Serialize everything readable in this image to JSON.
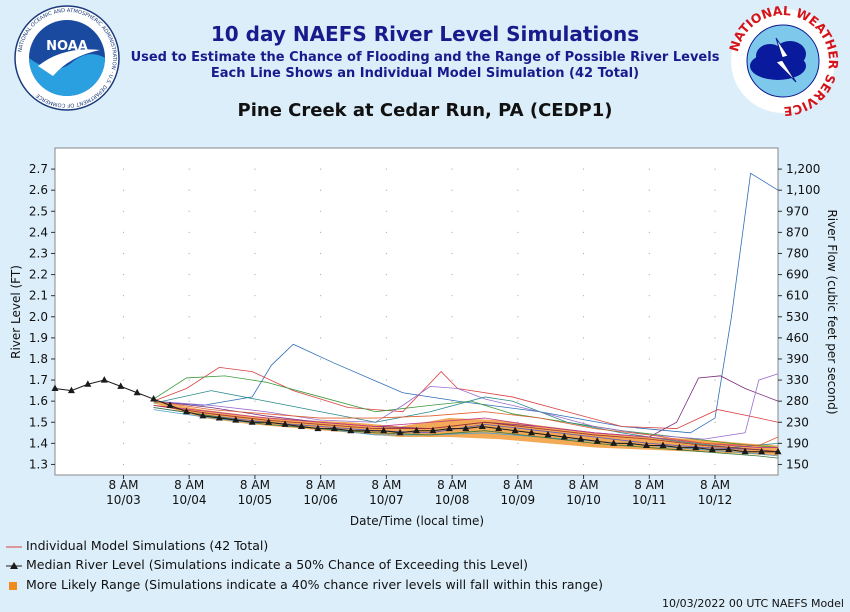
{
  "header": {
    "title": "10 day NAEFS River Level Simulations",
    "subtitle1": "Used to Estimate the Chance of Flooding and the Range of Possible River Levels",
    "subtitle2": "Each Line Shows an Individual Model Simulation (42 Total)",
    "location": "Pine Creek at Cedar Run, PA (CEDP1)"
  },
  "logos": {
    "noaa_text": "NOAA",
    "noaa_ring": "NATIONAL OCEANIC AND ATMOSPHERIC ADMINISTRATION · U.S. DEPARTMENT OF COMMERCE",
    "nws_ring": "NATIONAL WEATHER SERVICE"
  },
  "legend": {
    "individual": "Individual Model Simulations (42 Total)",
    "median": "Median River Level (Simulations indicate a 50% Chance of Exceeding this Level)",
    "range": "More Likely Range (Simulations indicate a 40% chance river levels will fall within this range)"
  },
  "footer": "10/03/2022 00 UTC NAEFS Model",
  "colors": {
    "title": "#1a1a8c",
    "background": "#dceefa",
    "median": "#1a1a1a",
    "range": "#f08c1e"
  },
  "chart_data": {
    "type": "line",
    "xlabel": "Date/Time (local time)",
    "ylabel": "River Level (FT)",
    "y2label": "River Flow (cubic feet per second)",
    "ylim": [
      1.25,
      2.8
    ],
    "yticks": [
      1.3,
      1.4,
      1.5,
      1.6,
      1.7,
      1.8,
      1.9,
      2.0,
      2.1,
      2.2,
      2.3,
      2.4,
      2.5,
      2.6,
      2.7
    ],
    "y2ticks": [
      {
        "level": 1.3,
        "label": "150"
      },
      {
        "level": 1.4,
        "label": "190"
      },
      {
        "level": 1.5,
        "label": "230"
      },
      {
        "level": 1.6,
        "label": "280"
      },
      {
        "level": 1.7,
        "label": "330"
      },
      {
        "level": 1.8,
        "label": "390"
      },
      {
        "level": 1.9,
        "label": "460"
      },
      {
        "level": 2.0,
        "label": "530"
      },
      {
        "level": 2.1,
        "label": "610"
      },
      {
        "level": 2.2,
        "label": "690"
      },
      {
        "level": 2.3,
        "label": "780"
      },
      {
        "level": 2.4,
        "label": "870"
      },
      {
        "level": 2.5,
        "label": "970"
      },
      {
        "level": 2.6,
        "label": "1,100"
      },
      {
        "level": 2.7,
        "label": "1,200"
      }
    ],
    "xlim_hours": [
      -17,
      247
    ],
    "xticks": [
      {
        "h": 8,
        "label": "8 AM",
        "date": "10/03"
      },
      {
        "h": 32,
        "label": "8 AM",
        "date": "10/04"
      },
      {
        "h": 56,
        "label": "8 AM",
        "date": "10/05"
      },
      {
        "h": 80,
        "label": "8 AM",
        "date": "10/06"
      },
      {
        "h": 104,
        "label": "8 AM",
        "date": "10/07"
      },
      {
        "h": 128,
        "label": "8 AM",
        "date": "10/08"
      },
      {
        "h": 152,
        "label": "8 AM",
        "date": "10/09"
      },
      {
        "h": 176,
        "label": "8 AM",
        "date": "10/10"
      },
      {
        "h": 200,
        "label": "8 AM",
        "date": "10/11"
      },
      {
        "h": 224,
        "label": "8 AM",
        "date": "10/12"
      }
    ],
    "median": {
      "name": "Median River Level",
      "hours": [
        -17,
        -11,
        -5,
        1,
        7,
        13,
        19,
        25,
        31,
        37,
        43,
        49,
        55,
        61,
        67,
        73,
        79,
        85,
        91,
        97,
        103,
        109,
        115,
        121,
        127,
        133,
        139,
        145,
        151,
        157,
        163,
        169,
        175,
        181,
        187,
        193,
        199,
        205,
        211,
        217,
        223,
        229,
        235,
        241,
        247
      ],
      "values": [
        1.66,
        1.65,
        1.68,
        1.7,
        1.67,
        1.64,
        1.61,
        1.58,
        1.55,
        1.53,
        1.52,
        1.51,
        1.5,
        1.5,
        1.49,
        1.48,
        1.47,
        1.47,
        1.46,
        1.46,
        1.46,
        1.45,
        1.46,
        1.46,
        1.47,
        1.47,
        1.48,
        1.47,
        1.46,
        1.45,
        1.44,
        1.43,
        1.42,
        1.41,
        1.4,
        1.4,
        1.39,
        1.39,
        1.38,
        1.38,
        1.37,
        1.37,
        1.36,
        1.36,
        1.36
      ]
    },
    "range": {
      "name": "More Likely Range",
      "hours": [
        19,
        37,
        55,
        73,
        91,
        109,
        127,
        145,
        163,
        181,
        199,
        217,
        235,
        247
      ],
      "low": [
        1.59,
        1.52,
        1.49,
        1.47,
        1.45,
        1.43,
        1.43,
        1.42,
        1.4,
        1.38,
        1.37,
        1.36,
        1.35,
        1.34
      ],
      "high": [
        1.6,
        1.56,
        1.53,
        1.51,
        1.5,
        1.48,
        1.52,
        1.51,
        1.48,
        1.45,
        1.43,
        1.42,
        1.4,
        1.39
      ]
    },
    "members": [
      {
        "color": "#2e6eb8",
        "hours": [
          19,
          37,
          55,
          62,
          70,
          85,
          110,
          130,
          160,
          190,
          215,
          224,
          230,
          237,
          247
        ],
        "values": [
          1.6,
          1.58,
          1.62,
          1.77,
          1.87,
          1.78,
          1.64,
          1.6,
          1.55,
          1.48,
          1.45,
          1.52,
          2.0,
          2.68,
          2.6
        ]
      },
      {
        "color": "#d94040",
        "hours": [
          19,
          31,
          43,
          55,
          70,
          90,
          110,
          124,
          130,
          150,
          170,
          190,
          210,
          225,
          240,
          247
        ],
        "values": [
          1.6,
          1.66,
          1.76,
          1.74,
          1.65,
          1.57,
          1.55,
          1.74,
          1.66,
          1.62,
          1.55,
          1.48,
          1.47,
          1.56,
          1.52,
          1.5
        ]
      },
      {
        "color": "#7a2a7a",
        "hours": [
          19,
          40,
          60,
          80,
          100,
          120,
          140,
          160,
          180,
          200,
          210,
          218,
          226,
          235,
          247
        ],
        "values": [
          1.6,
          1.57,
          1.53,
          1.5,
          1.48,
          1.47,
          1.5,
          1.48,
          1.45,
          1.43,
          1.5,
          1.71,
          1.72,
          1.66,
          1.6
        ]
      },
      {
        "color": "#3a9a3a",
        "hours": [
          19,
          31,
          45,
          60,
          80,
          100,
          120,
          135,
          150,
          170,
          190,
          210,
          230,
          247
        ],
        "values": [
          1.61,
          1.71,
          1.72,
          1.69,
          1.62,
          1.55,
          1.58,
          1.6,
          1.54,
          1.5,
          1.46,
          1.43,
          1.4,
          1.38
        ]
      },
      {
        "color": "#9a6ad0",
        "hours": [
          19,
          40,
          60,
          80,
          100,
          110,
          120,
          130,
          140,
          160,
          180,
          200,
          220,
          235,
          240,
          247
        ],
        "values": [
          1.6,
          1.58,
          1.55,
          1.51,
          1.5,
          1.58,
          1.67,
          1.66,
          1.61,
          1.55,
          1.48,
          1.44,
          1.42,
          1.45,
          1.7,
          1.73
        ]
      },
      {
        "color": "#2a8a8a",
        "hours": [
          19,
          40,
          60,
          80,
          100,
          120,
          140,
          150,
          170,
          190,
          210,
          230,
          247
        ],
        "values": [
          1.59,
          1.65,
          1.6,
          1.55,
          1.5,
          1.55,
          1.62,
          1.6,
          1.5,
          1.45,
          1.41,
          1.38,
          1.4
        ]
      },
      {
        "color": "#c03a8a",
        "hours": [
          19,
          40,
          60,
          80,
          100,
          120,
          140,
          160,
          180,
          200,
          220,
          240,
          247
        ],
        "values": [
          1.58,
          1.55,
          1.52,
          1.5,
          1.48,
          1.5,
          1.52,
          1.48,
          1.45,
          1.43,
          1.4,
          1.38,
          1.38
        ]
      },
      {
        "color": "#5a5ac0",
        "hours": [
          19,
          40,
          60,
          80,
          100,
          120,
          140,
          160,
          180,
          200,
          220,
          240,
          247
        ],
        "values": [
          1.57,
          1.53,
          1.5,
          1.48,
          1.46,
          1.45,
          1.49,
          1.46,
          1.43,
          1.4,
          1.38,
          1.37,
          1.36
        ]
      },
      {
        "color": "#e06030",
        "hours": [
          19,
          40,
          60,
          80,
          100,
          120,
          140,
          160,
          180,
          200,
          220,
          240,
          247
        ],
        "values": [
          1.6,
          1.56,
          1.54,
          1.52,
          1.52,
          1.53,
          1.55,
          1.52,
          1.47,
          1.44,
          1.4,
          1.39,
          1.43
        ]
      },
      {
        "color": "#4aa0d0",
        "hours": [
          19,
          40,
          60,
          80,
          100,
          120,
          140,
          160,
          180,
          200,
          220,
          240,
          247
        ],
        "values": [
          1.56,
          1.52,
          1.49,
          1.47,
          1.44,
          1.44,
          1.45,
          1.43,
          1.41,
          1.39,
          1.37,
          1.35,
          1.34
        ]
      },
      {
        "color": "#a03030",
        "hours": [
          19,
          40,
          60,
          80,
          100,
          120,
          140,
          160,
          180,
          200,
          220,
          240,
          247
        ],
        "values": [
          1.58,
          1.54,
          1.51,
          1.49,
          1.47,
          1.47,
          1.5,
          1.47,
          1.44,
          1.42,
          1.39,
          1.37,
          1.36
        ]
      },
      {
        "color": "#3a7a3a",
        "hours": [
          19,
          40,
          60,
          80,
          100,
          120,
          140,
          160,
          180,
          200,
          220,
          240,
          247
        ],
        "values": [
          1.57,
          1.53,
          1.49,
          1.47,
          1.45,
          1.44,
          1.46,
          1.43,
          1.4,
          1.38,
          1.36,
          1.34,
          1.33
        ]
      }
    ],
    "grid": false,
    "legend_position": "bottom-left"
  }
}
